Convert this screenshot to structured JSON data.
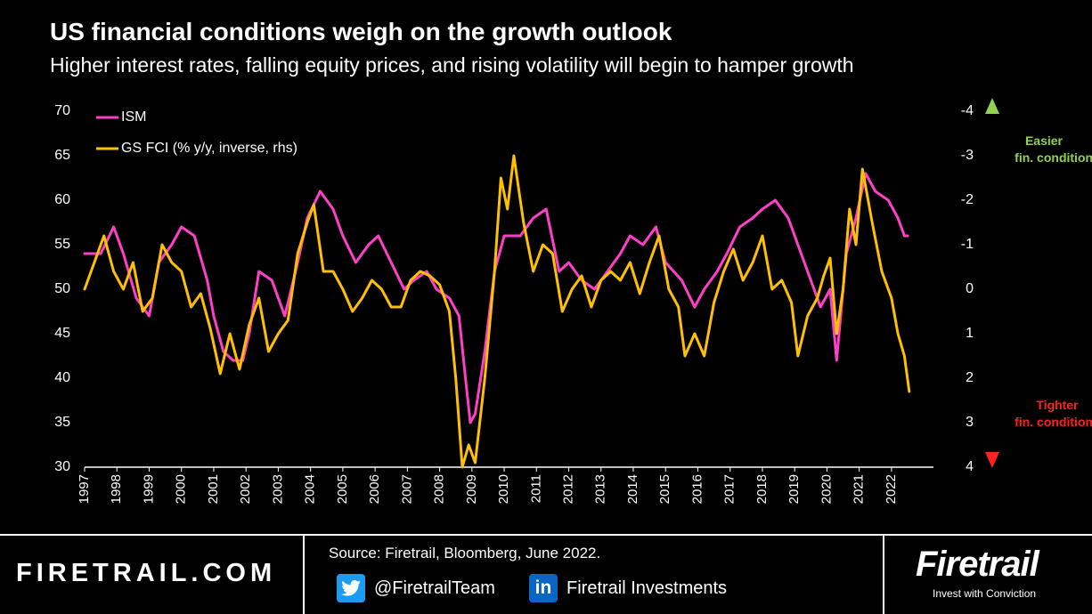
{
  "header": {
    "title": "US financial conditions weigh on the growth outlook",
    "subtitle": "Higher interest rates, falling equity prices, and rising volatility will begin to hamper growth"
  },
  "annotations": {
    "easier_line1": "Easier",
    "easier_line2": "fin. conditions",
    "tighter_line1": "Tighter",
    "tighter_line2": "fin. conditions",
    "easier_color": "#92d050",
    "tighter_color": "#ff2020"
  },
  "footer": {
    "website": "FIRETRAIL.COM",
    "source": "Source: Firetrail, Bloomberg, June 2022.",
    "twitter": "@FiretrailTeam",
    "linkedin": "Firetrail Investments",
    "linkedin_icon_text": "in",
    "brand": "Firetrail",
    "tagline": "Invest with Conviction"
  },
  "chart_data": {
    "type": "line",
    "x_ticks": [
      "1997",
      "1998",
      "1999",
      "2000",
      "2001",
      "2002",
      "2003",
      "2004",
      "2005",
      "2006",
      "2007",
      "2008",
      "2009",
      "2010",
      "2011",
      "2012",
      "2013",
      "2014",
      "2015",
      "2016",
      "2017",
      "2018",
      "2019",
      "2020",
      "2021",
      "2022"
    ],
    "x_range": [
      1997.0,
      2023.3
    ],
    "y_left": {
      "range": [
        30,
        70
      ],
      "ticks": [
        "70",
        "65",
        "60",
        "55",
        "50",
        "45",
        "40",
        "35",
        "30"
      ]
    },
    "y_right": {
      "range": [
        -4,
        4
      ],
      "inverted": true,
      "ticks": [
        "-4",
        "-3",
        "-2",
        "-1",
        "0",
        "1",
        "2",
        "3",
        "4"
      ]
    },
    "legend_position": "top-left",
    "grid": false,
    "series": [
      {
        "name": "ISM",
        "axis": "left",
        "color": "#ff3fc8",
        "points": [
          [
            1997.0,
            54
          ],
          [
            1997.5,
            54
          ],
          [
            1997.9,
            57
          ],
          [
            1998.2,
            54
          ],
          [
            1998.6,
            49
          ],
          [
            1999.0,
            47
          ],
          [
            1999.3,
            53
          ],
          [
            1999.7,
            55
          ],
          [
            2000.0,
            57
          ],
          [
            2000.4,
            56
          ],
          [
            2000.8,
            51
          ],
          [
            2001.0,
            47
          ],
          [
            2001.3,
            43
          ],
          [
            2001.6,
            42
          ],
          [
            2001.9,
            42
          ],
          [
            2002.1,
            45
          ],
          [
            2002.4,
            52
          ],
          [
            2002.8,
            51
          ],
          [
            2003.2,
            47
          ],
          [
            2003.6,
            53
          ],
          [
            2003.9,
            58
          ],
          [
            2004.3,
            61
          ],
          [
            2004.7,
            59
          ],
          [
            2005.0,
            56
          ],
          [
            2005.4,
            53
          ],
          [
            2005.8,
            55
          ],
          [
            2006.1,
            56
          ],
          [
            2006.5,
            53
          ],
          [
            2006.9,
            50
          ],
          [
            2007.2,
            51
          ],
          [
            2007.6,
            52
          ],
          [
            2007.9,
            50
          ],
          [
            2008.3,
            49
          ],
          [
            2008.6,
            47
          ],
          [
            2008.8,
            40
          ],
          [
            2008.95,
            35
          ],
          [
            2009.1,
            36
          ],
          [
            2009.4,
            43
          ],
          [
            2009.7,
            52
          ],
          [
            2010.0,
            56
          ],
          [
            2010.5,
            56
          ],
          [
            2010.9,
            58
          ],
          [
            2011.3,
            59
          ],
          [
            2011.7,
            52
          ],
          [
            2012.0,
            53
          ],
          [
            2012.4,
            51
          ],
          [
            2012.8,
            50
          ],
          [
            2013.2,
            52
          ],
          [
            2013.6,
            54
          ],
          [
            2013.9,
            56
          ],
          [
            2014.3,
            55
          ],
          [
            2014.7,
            57
          ],
          [
            2015.0,
            53
          ],
          [
            2015.5,
            51
          ],
          [
            2015.9,
            48
          ],
          [
            2016.2,
            50
          ],
          [
            2016.6,
            52
          ],
          [
            2016.9,
            54
          ],
          [
            2017.3,
            57
          ],
          [
            2017.7,
            58
          ],
          [
            2018.0,
            59
          ],
          [
            2018.4,
            60
          ],
          [
            2018.8,
            58
          ],
          [
            2019.0,
            56
          ],
          [
            2019.4,
            52
          ],
          [
            2019.8,
            48
          ],
          [
            2020.1,
            50
          ],
          [
            2020.3,
            42
          ],
          [
            2020.6,
            54
          ],
          [
            2020.9,
            58
          ],
          [
            2021.2,
            63
          ],
          [
            2021.5,
            61
          ],
          [
            2021.9,
            60
          ],
          [
            2022.2,
            58
          ],
          [
            2022.4,
            56
          ],
          [
            2022.5,
            56
          ]
        ]
      },
      {
        "name": "GS FCI (% y/y, inverse, rhs)",
        "axis": "right",
        "color": "#ffc000",
        "points": [
          [
            1997.0,
            0.0
          ],
          [
            1997.3,
            -0.6
          ],
          [
            1997.6,
            -1.2
          ],
          [
            1997.9,
            -0.4
          ],
          [
            1998.2,
            0.0
          ],
          [
            1998.5,
            -0.6
          ],
          [
            1998.8,
            0.5
          ],
          [
            1999.1,
            0.2
          ],
          [
            1999.4,
            -1.0
          ],
          [
            1999.7,
            -0.6
          ],
          [
            2000.0,
            -0.4
          ],
          [
            2000.3,
            0.4
          ],
          [
            2000.6,
            0.1
          ],
          [
            2000.9,
            0.9
          ],
          [
            2001.2,
            1.9
          ],
          [
            2001.5,
            1.0
          ],
          [
            2001.8,
            1.8
          ],
          [
            2002.1,
            0.8
          ],
          [
            2002.4,
            0.2
          ],
          [
            2002.7,
            1.4
          ],
          [
            2003.0,
            1.0
          ],
          [
            2003.3,
            0.7
          ],
          [
            2003.6,
            -0.8
          ],
          [
            2003.9,
            -1.5
          ],
          [
            2004.1,
            -1.9
          ],
          [
            2004.4,
            -0.4
          ],
          [
            2004.7,
            -0.4
          ],
          [
            2005.0,
            0.0
          ],
          [
            2005.3,
            0.5
          ],
          [
            2005.6,
            0.2
          ],
          [
            2005.9,
            -0.2
          ],
          [
            2006.2,
            0.0
          ],
          [
            2006.5,
            0.4
          ],
          [
            2006.8,
            0.4
          ],
          [
            2007.1,
            -0.2
          ],
          [
            2007.4,
            -0.4
          ],
          [
            2007.7,
            -0.3
          ],
          [
            2008.0,
            -0.1
          ],
          [
            2008.3,
            0.5
          ],
          [
            2008.5,
            2.0
          ],
          [
            2008.7,
            4.0
          ],
          [
            2008.9,
            3.5
          ],
          [
            2009.1,
            3.9
          ],
          [
            2009.4,
            2.0
          ],
          [
            2009.7,
            -0.4
          ],
          [
            2009.9,
            -2.5
          ],
          [
            2010.1,
            -1.8
          ],
          [
            2010.3,
            -3.0
          ],
          [
            2010.6,
            -1.5
          ],
          [
            2010.9,
            -0.4
          ],
          [
            2011.2,
            -1.0
          ],
          [
            2011.5,
            -0.8
          ],
          [
            2011.8,
            0.5
          ],
          [
            2012.1,
            0.0
          ],
          [
            2012.4,
            -0.3
          ],
          [
            2012.7,
            0.4
          ],
          [
            2013.0,
            -0.2
          ],
          [
            2013.3,
            -0.4
          ],
          [
            2013.6,
            -0.2
          ],
          [
            2013.9,
            -0.6
          ],
          [
            2014.2,
            0.1
          ],
          [
            2014.5,
            -0.6
          ],
          [
            2014.8,
            -1.2
          ],
          [
            2015.1,
            0.0
          ],
          [
            2015.4,
            0.4
          ],
          [
            2015.6,
            1.5
          ],
          [
            2015.9,
            1.0
          ],
          [
            2016.2,
            1.5
          ],
          [
            2016.5,
            0.3
          ],
          [
            2016.8,
            -0.4
          ],
          [
            2017.1,
            -0.9
          ],
          [
            2017.4,
            -0.2
          ],
          [
            2017.7,
            -0.6
          ],
          [
            2018.0,
            -1.2
          ],
          [
            2018.3,
            0.0
          ],
          [
            2018.6,
            -0.2
          ],
          [
            2018.9,
            0.3
          ],
          [
            2019.1,
            1.5
          ],
          [
            2019.4,
            0.6
          ],
          [
            2019.7,
            0.2
          ],
          [
            2019.9,
            -0.3
          ],
          [
            2020.1,
            -0.7
          ],
          [
            2020.3,
            1.0
          ],
          [
            2020.5,
            0.0
          ],
          [
            2020.7,
            -1.8
          ],
          [
            2020.9,
            -1.0
          ],
          [
            2021.1,
            -2.7
          ],
          [
            2021.4,
            -1.5
          ],
          [
            2021.7,
            -0.4
          ],
          [
            2022.0,
            0.2
          ],
          [
            2022.2,
            1.0
          ],
          [
            2022.4,
            1.5
          ],
          [
            2022.55,
            2.3
          ]
        ]
      }
    ]
  }
}
